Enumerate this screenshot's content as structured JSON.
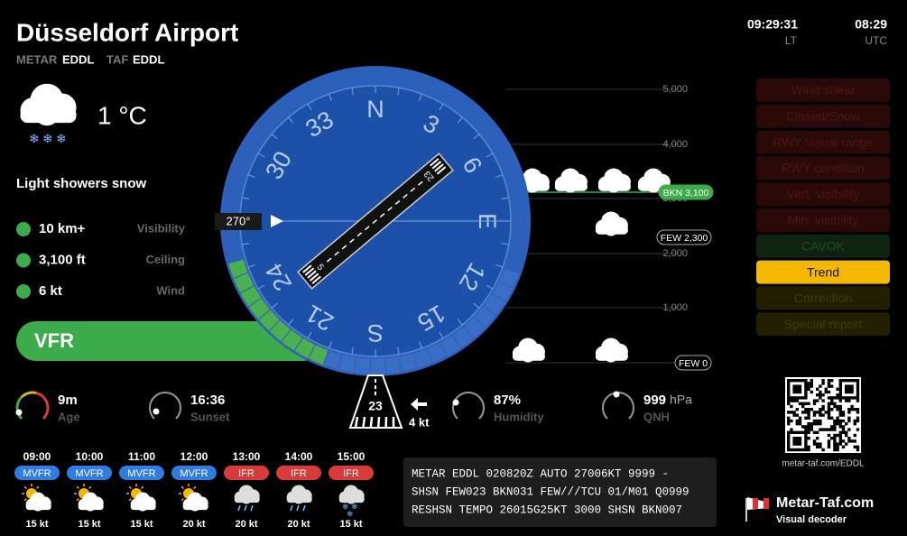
{
  "header": {
    "title": "Düsseldorf Airport",
    "metar_label": "METAR",
    "metar_code": "EDDL",
    "taf_label": "TAF",
    "taf_code": "EDDL"
  },
  "clock": {
    "local_time": "09:29:31",
    "local_label": "LT",
    "utc_time": "08:29",
    "utc_label": "UTC"
  },
  "current": {
    "temperature": "1 °C",
    "condition": "Light showers snow",
    "stats": [
      {
        "value": "10 km+",
        "label": "Visibility"
      },
      {
        "value": "3,100 ft",
        "label": "Ceiling"
      },
      {
        "value": "6 kt",
        "label": "Wind"
      }
    ],
    "flight_category": "VFR"
  },
  "runway_compass": {
    "wind_direction": "270°",
    "markings": [
      "N",
      "3",
      "6",
      "E",
      "12",
      "15",
      "S",
      "21",
      "24",
      "30",
      "33"
    ],
    "runway_ends": [
      "5",
      "23"
    ],
    "active_runway": "23",
    "wind_speed": "4 kt"
  },
  "cloud_profile": {
    "altitudes": [
      "5,000",
      "4,000",
      "3,000",
      "2,000",
      "1,000"
    ],
    "layers": [
      "BKN 3,100",
      "FEW 2,300",
      "FEW 0"
    ]
  },
  "alerts": [
    "Wind shear",
    "Closed/Snow",
    "RWY visual range",
    "RWY condition",
    "Vert. visibility",
    "Min. visibility",
    "CAVOK",
    "Trend",
    "Correction",
    "Special report"
  ],
  "gauges": [
    {
      "value": "9m",
      "label": "Age"
    },
    {
      "value": "16:36",
      "label": "Sunset"
    },
    {
      "value": "87%",
      "label": "Humidity"
    },
    {
      "value": "999",
      "unit": "hPa",
      "label": "QNH"
    }
  ],
  "forecast": [
    {
      "time": "09:00",
      "category": "MVFR",
      "wind": "15 kt"
    },
    {
      "time": "10:00",
      "category": "MVFR",
      "wind": "15 kt"
    },
    {
      "time": "11:00",
      "category": "MVFR",
      "wind": "15 kt"
    },
    {
      "time": "12:00",
      "category": "MVFR",
      "wind": "20 kt"
    },
    {
      "time": "13:00",
      "category": "IFR",
      "wind": "20 kt"
    },
    {
      "time": "14:00",
      "category": "IFR",
      "wind": "20 kt"
    },
    {
      "time": "15:00",
      "category": "IFR",
      "wind": "15 kt"
    }
  ],
  "metar": [
    "METAR EDDL 020820Z AUTO 27006KT 9999 -",
    "SHSN FEW023 BKN031 FEW///TCU 01/M01 Q0999",
    "RESHSN TEMPO 26015G25KT 3000 SHSN BKN007"
  ],
  "footer": {
    "qr_caption": "metar-taf.com/EDDL",
    "brand": "Metar-Taf.com",
    "tagline": "Visual decoder"
  }
}
